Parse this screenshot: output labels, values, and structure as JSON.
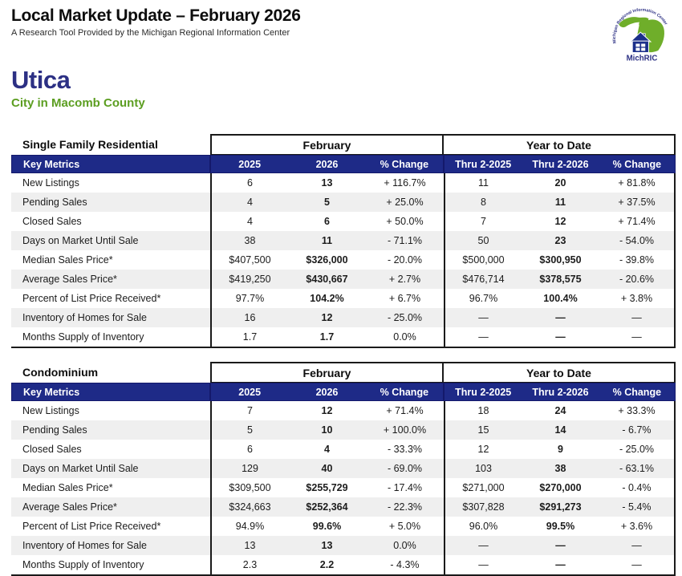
{
  "header": {
    "title": "Local Market Update – February 2026",
    "subtitle": "A Research Tool Provided by the Michigan Regional Information Center"
  },
  "logo": {
    "name": "MichRIC",
    "arc_text": "Michigan Regional Information Center"
  },
  "location": {
    "name": "Utica",
    "subtitle": "City in Macomb County"
  },
  "colors": {
    "navy_header": "#1e2a87",
    "location_navy": "#2c3084",
    "green": "#5c9e21",
    "row_alt": "#efefef",
    "logo_green": "#6fae2a",
    "logo_blue": "#1b2f8a"
  },
  "tables": [
    {
      "title": "Single Family Residential",
      "group_headers": [
        "February",
        "Year to Date"
      ],
      "columns": [
        "Key Metrics",
        "2025",
        "2026",
        "% Change",
        "Thru 2-2025",
        "Thru 2-2026",
        "% Change"
      ],
      "rows": [
        [
          "New Listings",
          "6",
          "13",
          "+ 116.7%",
          "11",
          "20",
          "+ 81.8%"
        ],
        [
          "Pending Sales",
          "4",
          "5",
          "+ 25.0%",
          "8",
          "11",
          "+ 37.5%"
        ],
        [
          "Closed Sales",
          "4",
          "6",
          "+ 50.0%",
          "7",
          "12",
          "+ 71.4%"
        ],
        [
          "Days on Market Until Sale",
          "38",
          "11",
          "- 71.1%",
          "50",
          "23",
          "- 54.0%"
        ],
        [
          "Median Sales Price*",
          "$407,500",
          "$326,000",
          "- 20.0%",
          "$500,000",
          "$300,950",
          "- 39.8%"
        ],
        [
          "Average Sales Price*",
          "$419,250",
          "$430,667",
          "+ 2.7%",
          "$476,714",
          "$378,575",
          "- 20.6%"
        ],
        [
          "Percent of List Price Received*",
          "97.7%",
          "104.2%",
          "+ 6.7%",
          "96.7%",
          "100.4%",
          "+ 3.8%"
        ],
        [
          "Inventory of Homes for Sale",
          "16",
          "12",
          "- 25.0%",
          "—",
          "—",
          "—"
        ],
        [
          "Months Supply of Inventory",
          "1.7",
          "1.7",
          "0.0%",
          "—",
          "—",
          "—"
        ]
      ]
    },
    {
      "title": "Condominium",
      "group_headers": [
        "February",
        "Year to Date"
      ],
      "columns": [
        "Key Metrics",
        "2025",
        "2026",
        "% Change",
        "Thru 2-2025",
        "Thru 2-2026",
        "% Change"
      ],
      "rows": [
        [
          "New Listings",
          "7",
          "12",
          "+ 71.4%",
          "18",
          "24",
          "+ 33.3%"
        ],
        [
          "Pending Sales",
          "5",
          "10",
          "+ 100.0%",
          "15",
          "14",
          "- 6.7%"
        ],
        [
          "Closed Sales",
          "6",
          "4",
          "- 33.3%",
          "12",
          "9",
          "- 25.0%"
        ],
        [
          "Days on Market Until Sale",
          "129",
          "40",
          "- 69.0%",
          "103",
          "38",
          "- 63.1%"
        ],
        [
          "Median Sales Price*",
          "$309,500",
          "$255,729",
          "- 17.4%",
          "$271,000",
          "$270,000",
          "- 0.4%"
        ],
        [
          "Average Sales Price*",
          "$324,663",
          "$252,364",
          "- 22.3%",
          "$307,828",
          "$291,273",
          "- 5.4%"
        ],
        [
          "Percent of List Price Received*",
          "94.9%",
          "99.6%",
          "+ 5.0%",
          "96.0%",
          "99.5%",
          "+ 3.6%"
        ],
        [
          "Inventory of Homes for Sale",
          "13",
          "13",
          "0.0%",
          "—",
          "—",
          "—"
        ],
        [
          "Months Supply of Inventory",
          "2.3",
          "2.2",
          "- 4.3%",
          "—",
          "—",
          "—"
        ]
      ]
    }
  ]
}
